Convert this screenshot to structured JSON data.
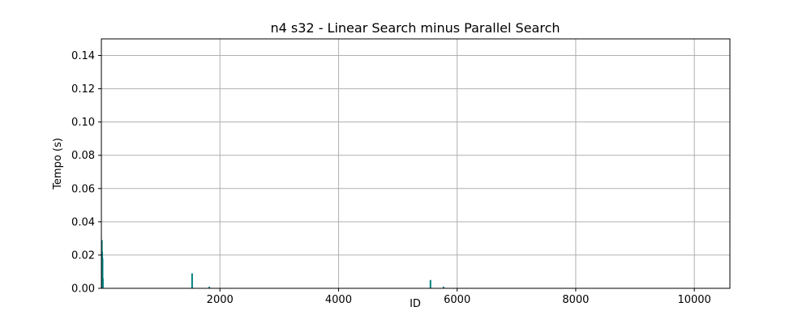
{
  "chart_data": {
    "type": "bar",
    "title": "n4 s32 - Linear Search minus Parallel Search",
    "xlabel": "ID",
    "ylabel": "Tempo (s)",
    "xlim": [
      0,
      10600
    ],
    "ylim": [
      0,
      0.15
    ],
    "x_ticks": [
      2000,
      4000,
      6000,
      8000,
      10000
    ],
    "y_ticks": [
      0.0,
      0.02,
      0.04,
      0.06,
      0.08,
      0.1,
      0.12,
      0.14
    ],
    "grid": true,
    "color": "#008080",
    "series": [
      {
        "points": [
          {
            "x": 8,
            "y": 0.029
          },
          {
            "x": 14,
            "y": 0.022
          },
          {
            "x": 20,
            "y": 0.018
          },
          {
            "x": 26,
            "y": 0.006
          },
          {
            "x": 1530,
            "y": 0.009
          },
          {
            "x": 1820,
            "y": 0.001
          },
          {
            "x": 5550,
            "y": 0.005
          },
          {
            "x": 5770,
            "y": 0.001
          }
        ]
      }
    ]
  }
}
